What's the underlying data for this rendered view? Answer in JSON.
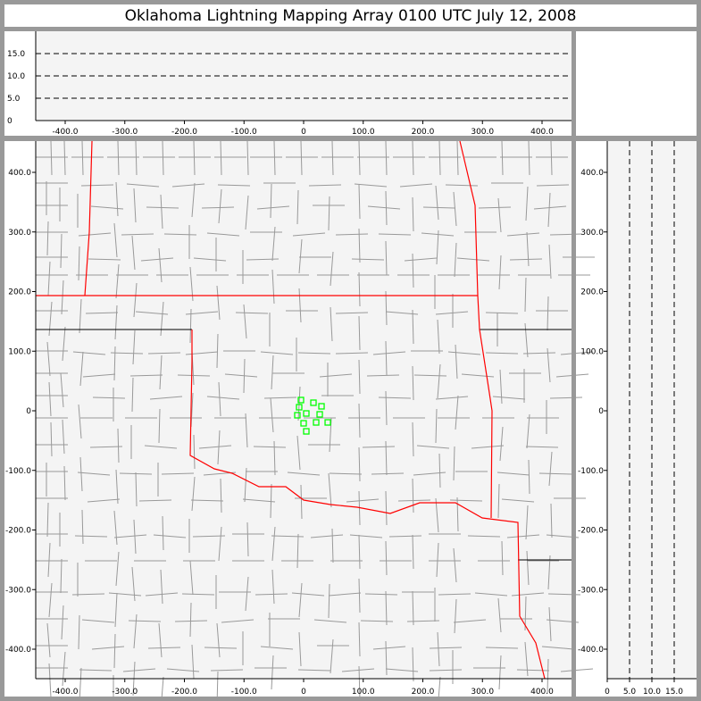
{
  "title": "Oklahoma Lightning Mapping Array   0100 UTC  July 12, 2008",
  "colors": {
    "background": "#999999",
    "plot": "#f4f4f4",
    "state_border": "#ff0000",
    "county_border": "#999999",
    "source": "#00ff00"
  },
  "top_panel": {
    "y_ticks": [
      "0",
      "5.0",
      "10.0",
      "15.0"
    ],
    "x_ticks": [
      "-400.0",
      "-300.0",
      "-200.0",
      "-100.0",
      "0",
      "100.0",
      "200.0",
      "300.0",
      "400.0"
    ]
  },
  "map_panel": {
    "y_ticks": [
      "400.0",
      "300.0",
      "200.0",
      "100.0",
      "0",
      "-100.0",
      "-200.0",
      "-300.0",
      "-400.0"
    ],
    "x_ticks": [
      "-400.0",
      "-300.0",
      "-200.0",
      "-100.0",
      "0",
      "100.0",
      "200.0",
      "300.0",
      "400.0"
    ]
  },
  "right_panel": {
    "y_ticks": [
      "400.0",
      "300.0",
      "200.0",
      "100.0",
      "0",
      "-100.0",
      "-200.0",
      "-300.0",
      "-400.0"
    ],
    "x_ticks": [
      "0",
      "5.0",
      "10.0",
      "15.0"
    ]
  },
  "sources_km": [
    [
      -4.5,
      18
    ],
    [
      -7.5,
      6
    ],
    [
      16.5,
      13.5
    ],
    [
      30,
      7.5
    ],
    [
      -10.5,
      -7.5
    ],
    [
      4.5,
      -4.5
    ],
    [
      27,
      -6
    ],
    [
      0,
      -21
    ],
    [
      21,
      -19.5
    ],
    [
      40.5,
      -19.5
    ],
    [
      4.5,
      -34.5
    ]
  ]
}
